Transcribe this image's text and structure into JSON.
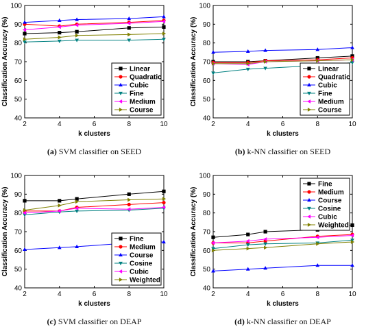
{
  "chart_data": [
    {
      "type": "line",
      "caption_label": "(a)",
      "caption_text": "SVM classifier on SEED",
      "xlabel": "k clusters",
      "ylabel": "Classification Accuracy (%)",
      "x": [
        2,
        4,
        5,
        8,
        10
      ],
      "xlim": [
        2,
        10
      ],
      "ylim": [
        40,
        100
      ],
      "xticks": [
        2,
        4,
        6,
        8,
        10
      ],
      "yticks": [
        40,
        50,
        60,
        70,
        80,
        90,
        100
      ],
      "legend": "bottom-right",
      "series": [
        {
          "name": "Linear",
          "color": "#000000",
          "marker": "square",
          "values": [
            85,
            85.5,
            86,
            88,
            88.5
          ]
        },
        {
          "name": "Quadratic",
          "color": "#ff0000",
          "marker": "circle",
          "values": [
            90,
            89,
            90,
            91,
            92
          ]
        },
        {
          "name": "Cubic",
          "color": "#0000ff",
          "marker": "triangle-up",
          "values": [
            91,
            92,
            92.5,
            93,
            94
          ]
        },
        {
          "name": "Fine",
          "color": "#008080",
          "marker": "triangle-down",
          "values": [
            80.5,
            81,
            81.5,
            81.5,
            82
          ]
        },
        {
          "name": "Medium",
          "color": "#ff00ff",
          "marker": "triangle-left",
          "values": [
            87,
            88.5,
            89.5,
            90.5,
            91.5
          ]
        },
        {
          "name": "Course",
          "color": "#808000",
          "marker": "triangle-right",
          "values": [
            82,
            83,
            84,
            84.5,
            85
          ]
        }
      ]
    },
    {
      "type": "line",
      "caption_label": "(b)",
      "caption_text": "k-NN classifier on SEED",
      "xlabel": "k clusters",
      "ylabel": "Classification Accuracy (%)",
      "x": [
        2,
        4,
        5,
        8,
        10
      ],
      "xlim": [
        2,
        10
      ],
      "ylim": [
        40,
        100
      ],
      "xticks": [
        2,
        4,
        6,
        8,
        10
      ],
      "yticks": [
        40,
        50,
        60,
        70,
        80,
        90,
        100
      ],
      "legend": "bottom-right",
      "series": [
        {
          "name": "Linear",
          "color": "#000000",
          "marker": "square",
          "values": [
            70,
            70,
            70.5,
            72,
            73
          ]
        },
        {
          "name": "Quadratic",
          "color": "#ff0000",
          "marker": "circle",
          "values": [
            69.5,
            69.5,
            70.5,
            71,
            72
          ]
        },
        {
          "name": "Cubic",
          "color": "#0000ff",
          "marker": "triangle-up",
          "values": [
            75,
            75.5,
            76,
            76.5,
            77.5
          ]
        },
        {
          "name": "Fine",
          "color": "#008080",
          "marker": "triangle-down",
          "values": [
            64,
            66,
            66.5,
            68,
            69.5
          ]
        },
        {
          "name": "Medium",
          "color": "#ff00ff",
          "marker": "triangle-left",
          "values": [
            69,
            68.5,
            70,
            70.5,
            71
          ]
        },
        {
          "name": "Course",
          "color": "#808000",
          "marker": "triangle-right",
          "values": [
            69,
            69,
            70,
            70.5,
            71
          ]
        }
      ]
    },
    {
      "type": "line",
      "caption_label": "(c)",
      "caption_text": "SVM classifier on DEAP",
      "xlabel": "k clusters",
      "ylabel": "Classification Accuracy (%)",
      "x": [
        2,
        4,
        5,
        8,
        10
      ],
      "xlim": [
        2,
        10
      ],
      "ylim": [
        40,
        100
      ],
      "xticks": [
        2,
        4,
        6,
        8,
        10
      ],
      "yticks": [
        40,
        50,
        60,
        70,
        80,
        90,
        100
      ],
      "legend": "bottom-right",
      "series": [
        {
          "name": "Fine",
          "color": "#000000",
          "marker": "square",
          "values": [
            86.5,
            86.5,
            87.5,
            90,
            91.5
          ]
        },
        {
          "name": "Medium",
          "color": "#ff0000",
          "marker": "circle",
          "values": [
            81,
            81,
            83,
            84.5,
            85.5
          ]
        },
        {
          "name": "Course",
          "color": "#0000ff",
          "marker": "triangle-up",
          "values": [
            60.5,
            61.5,
            62,
            64,
            64.5
          ]
        },
        {
          "name": "Cosine",
          "color": "#008080",
          "marker": "triangle-down",
          "values": [
            79,
            80.5,
            81,
            81.5,
            82.5
          ]
        },
        {
          "name": "Cubic",
          "color": "#ff00ff",
          "marker": "triangle-left",
          "values": [
            80,
            81,
            82.5,
            82,
            83
          ]
        },
        {
          "name": "Weighted",
          "color": "#808000",
          "marker": "triangle-right",
          "values": [
            81.5,
            84,
            86,
            87,
            87.5
          ]
        }
      ]
    },
    {
      "type": "line",
      "caption_label": "(d)",
      "caption_text": "k-NN classifier on DEAP",
      "xlabel": "k clusters",
      "ylabel": "Classification Accuracy (%)",
      "x": [
        2,
        4,
        5,
        8,
        10
      ],
      "xlim": [
        2,
        10
      ],
      "ylim": [
        40,
        100
      ],
      "xticks": [
        2,
        4,
        6,
        8,
        10
      ],
      "yticks": [
        40,
        50,
        60,
        70,
        80,
        90,
        100
      ],
      "legend": "top-right",
      "series": [
        {
          "name": "Fine",
          "color": "#000000",
          "marker": "square",
          "values": [
            67,
            68.5,
            70,
            71,
            73.5
          ]
        },
        {
          "name": "Medium",
          "color": "#ff0000",
          "marker": "circle",
          "values": [
            64,
            64,
            65,
            67.5,
            68.5
          ]
        },
        {
          "name": "Course",
          "color": "#0000ff",
          "marker": "triangle-up",
          "values": [
            49,
            50,
            50.5,
            52,
            52
          ]
        },
        {
          "name": "Cosine",
          "color": "#008080",
          "marker": "triangle-down",
          "values": [
            61,
            63,
            63.5,
            64,
            65.5
          ]
        },
        {
          "name": "Cubic",
          "color": "#ff00ff",
          "marker": "triangle-left",
          "values": [
            64,
            65,
            66,
            67,
            68
          ]
        },
        {
          "name": "Weighted",
          "color": "#808000",
          "marker": "triangle-right",
          "values": [
            60,
            61,
            61.5,
            63.5,
            64.5
          ]
        }
      ]
    }
  ]
}
